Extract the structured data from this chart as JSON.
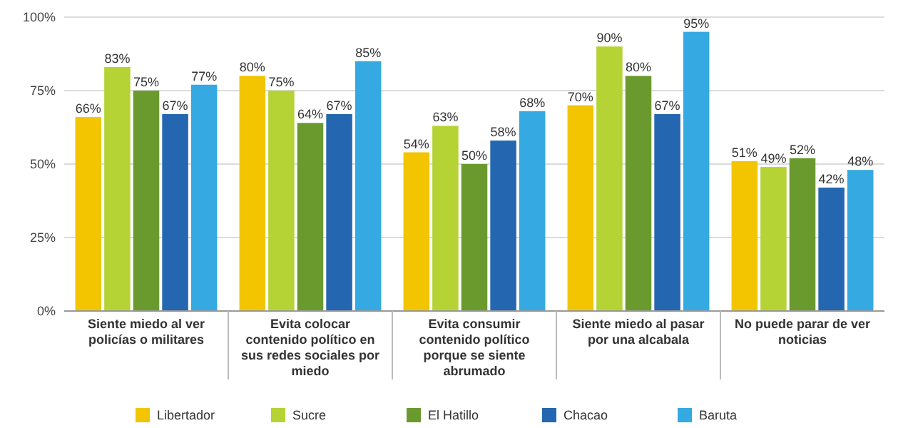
{
  "chart_data": {
    "type": "bar",
    "categories": [
      "Siente miedo al ver policías o militares",
      "Evita colocar contenido político en sus redes sociales por miedo",
      "Evita consumir contenido político porque se siente abrumado",
      "Siente miedo al pasar por una alcabala",
      "No puede parar de ver noticias"
    ],
    "series": [
      {
        "name": "Libertador",
        "color": "#f2c500",
        "values": [
          66,
          80,
          54,
          70,
          51
        ],
        "value_labels": [
          "66%",
          "80%",
          "54%",
          "70%",
          "51%"
        ]
      },
      {
        "name": "Sucre",
        "color": "#b5d334",
        "values": [
          83,
          75,
          63,
          90,
          49
        ],
        "value_labels": [
          "83%",
          "75%",
          "63%",
          "90%",
          "49%"
        ]
      },
      {
        "name": "El Hatillo",
        "color": "#6a9a2e",
        "values": [
          75,
          64,
          50,
          80,
          52
        ],
        "value_labels": [
          "75%",
          "64%",
          "50%",
          "80%",
          "52%"
        ]
      },
      {
        "name": "Chacao",
        "color": "#2467b0",
        "values": [
          67,
          67,
          58,
          67,
          42
        ],
        "value_labels": [
          "67%",
          "67%",
          "58%",
          "67%",
          "42%"
        ]
      },
      {
        "name": "Baruta",
        "color": "#35a9e1",
        "values": [
          77,
          85,
          68,
          95,
          48
        ],
        "value_labels": [
          "77%",
          "85%",
          "68%",
          "95%",
          "48%"
        ]
      }
    ],
    "ylim": [
      0,
      100
    ],
    "yticks": [
      {
        "value": 0,
        "label": "0%"
      },
      {
        "value": 25,
        "label": "25%"
      },
      {
        "value": 50,
        "label": "50%"
      },
      {
        "value": 75,
        "label": "75%"
      },
      {
        "value": 100,
        "label": "100%"
      }
    ],
    "grid": "y",
    "legend": "bottom"
  }
}
